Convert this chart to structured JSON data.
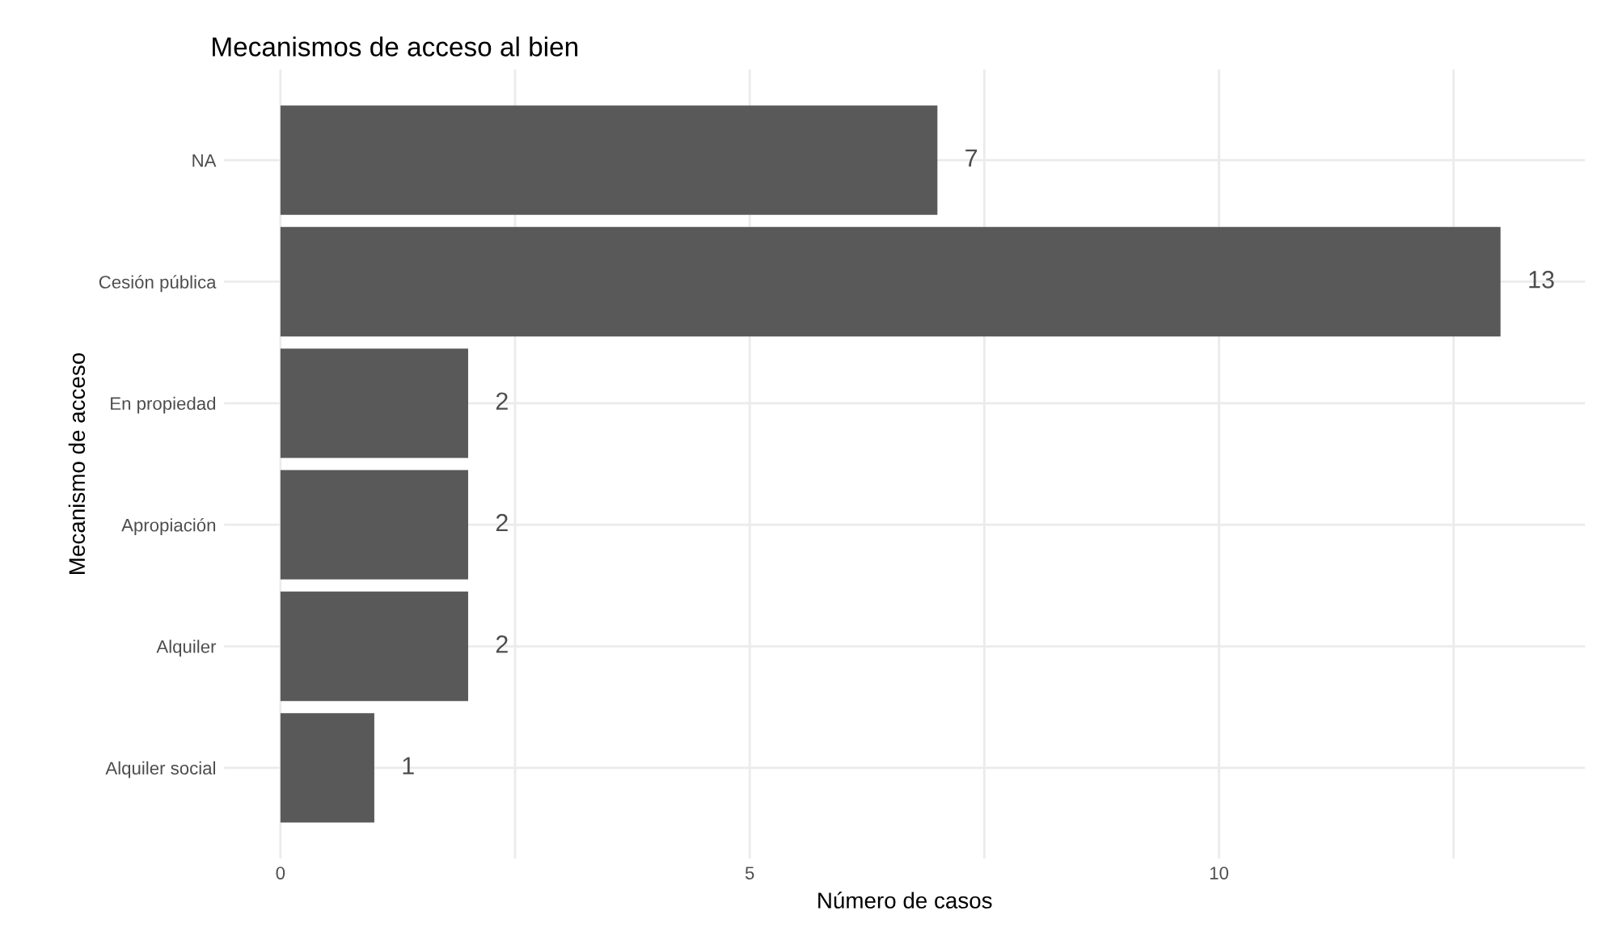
{
  "chart_data": {
    "type": "bar",
    "orientation": "horizontal",
    "title": "Mecanismos de acceso al bien",
    "xlabel": "Número de casos",
    "ylabel": "Mecanismo de acceso",
    "categories": [
      "NA",
      "Cesión pública",
      "En propiedad",
      "Apropiación",
      "Alquiler",
      "Alquiler social"
    ],
    "values": [
      7,
      13,
      2,
      2,
      2,
      1
    ],
    "color": "#595959",
    "xlim": [
      -0.6,
      13.9
    ],
    "xticks": [
      0,
      {
        "value": 2.5,
        "label": null
      },
      5,
      {
        "value": 7.5,
        "label": null
      },
      10,
      {
        "value": 12.5,
        "label": null
      }
    ],
    "grid": true,
    "data_labels": true
  }
}
